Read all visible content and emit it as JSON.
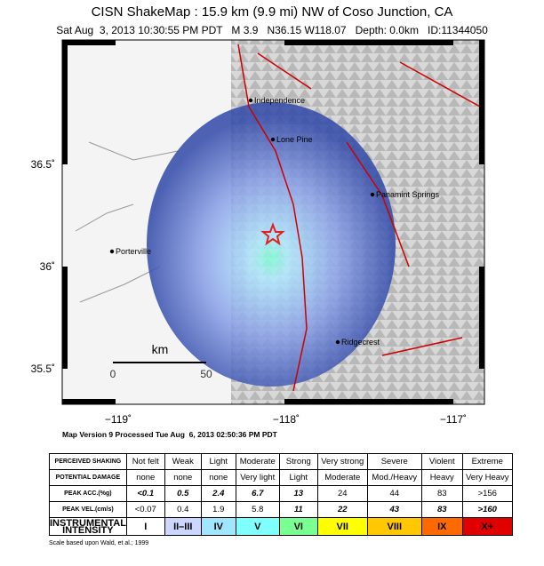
{
  "header": {
    "title": "CISN ShakeMap : 15.9 km (9.9 mi) NW of Coso Junction, CA",
    "subtitle": "Sat Aug  3, 2013 10:30:55 PM PDT   M 3.9   N36.15 W118.07   Depth: 0.0km   ID:11344050"
  },
  "map": {
    "places": [
      "Independence",
      "Lone Pine",
      "Panamint Springs",
      "Porterville",
      "Ridgecrest"
    ],
    "lat_labels": [
      "36.5˚",
      "36˚",
      "35.5˚"
    ],
    "lon_labels": [
      "−119˚",
      "−118˚",
      "−117˚"
    ],
    "scale": {
      "unit": "km",
      "start": "0",
      "end": "50"
    },
    "version": "Map Version 9 Processed Tue Aug  6, 2013 02:50:36 PM PDT"
  },
  "table": {
    "rows": [
      [
        "PERCEIVED SHAKING",
        "Not felt",
        "Weak",
        "Light",
        "Moderate",
        "Strong",
        "Very strong",
        "Severe",
        "Violent",
        "Extreme"
      ],
      [
        "POTENTIAL DAMAGE",
        "none",
        "none",
        "none",
        "Very light",
        "Light",
        "Moderate",
        "Mod./Heavy",
        "Heavy",
        "Very Heavy"
      ],
      [
        "PEAK ACC.(%g)",
        "<0.1",
        "0.5",
        "2.4",
        "6.7",
        "13",
        "24",
        "44",
        "83",
        ">156"
      ],
      [
        "PEAK VEL.(cm/s)",
        "<0.07",
        "0.4",
        "1.9",
        "5.8",
        "11",
        "22",
        "43",
        "83",
        ">160"
      ],
      [
        "INSTRUMENTAL INTENSITY",
        "I",
        "II–III",
        "IV",
        "V",
        "VI",
        "VII",
        "VIII",
        "IX",
        "X+"
      ]
    ]
  },
  "footnote": "Scale based upon Wald, et al.; 1999"
}
